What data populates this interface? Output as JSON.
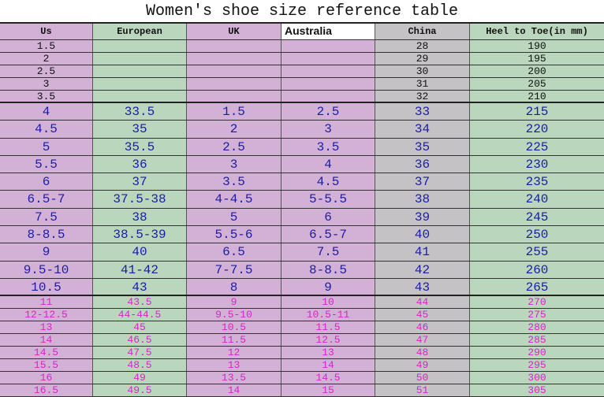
{
  "title": "Women's shoe size reference table",
  "headers": [
    "Us",
    "European",
    "UK",
    "Australia",
    "China",
    "Heel to Toe(in mm)"
  ],
  "colors": {
    "purple": "#d3b1d6",
    "green": "#bad6bd",
    "gray": "#c4c2c4",
    "blue_text": "#1c1ca4",
    "pink_text": "#d426c8"
  },
  "small_rows": [
    [
      "1.5",
      "",
      "",
      "",
      "28",
      "190"
    ],
    [
      "2",
      "",
      "",
      "",
      "29",
      "195"
    ],
    [
      "2.5",
      "",
      "",
      "",
      "30",
      "200"
    ],
    [
      "3",
      "",
      "",
      "",
      "31",
      "205"
    ],
    [
      "3.5",
      "",
      "",
      "",
      "32",
      "210"
    ]
  ],
  "big_rows": [
    [
      "4",
      "33.5",
      "1.5",
      "2.5",
      "33",
      "215"
    ],
    [
      "4.5",
      "35",
      "2",
      "3",
      "34",
      "220"
    ],
    [
      "5",
      "35.5",
      "2.5",
      "3.5",
      "35",
      "225"
    ],
    [
      "5.5",
      "36",
      "3",
      "4",
      "36",
      "230"
    ],
    [
      "6",
      "37",
      "3.5",
      "4.5",
      "37",
      "235"
    ],
    [
      "6.5-7",
      "37.5-38",
      "4-4.5",
      "5-5.5",
      "38",
      "240"
    ],
    [
      "7.5",
      "38",
      "5",
      "6",
      "39",
      "245"
    ],
    [
      "8-8.5",
      "38.5-39",
      "5.5-6",
      "6.5-7",
      "40",
      "250"
    ],
    [
      "9",
      "40",
      "6.5",
      "7.5",
      "41",
      "255"
    ],
    [
      "9.5-10",
      "41-42",
      "7-7.5",
      "8-8.5",
      "42",
      "260"
    ],
    [
      "10.5",
      "43",
      "8",
      "9",
      "43",
      "265"
    ]
  ],
  "pink_rows": [
    [
      "11",
      "43.5",
      "9",
      "10",
      "44",
      "270"
    ],
    [
      "12-12.5",
      "44-44.5",
      "9.5-10",
      "10.5-11",
      "45",
      "275"
    ],
    [
      "13",
      "45",
      "10.5",
      "11.5",
      "46",
      "280"
    ],
    [
      "14",
      "46.5",
      "11.5",
      "12.5",
      "47",
      "285"
    ],
    [
      "14.5",
      "47.5",
      "12",
      "13",
      "48",
      "290"
    ],
    [
      "15.5",
      "48.5",
      "13",
      "14",
      "49",
      "295"
    ],
    [
      "16",
      "49",
      "13.5",
      "14.5",
      "50",
      "300"
    ],
    [
      "16.5",
      "49.5",
      "14",
      "15",
      "51",
      "305"
    ]
  ]
}
